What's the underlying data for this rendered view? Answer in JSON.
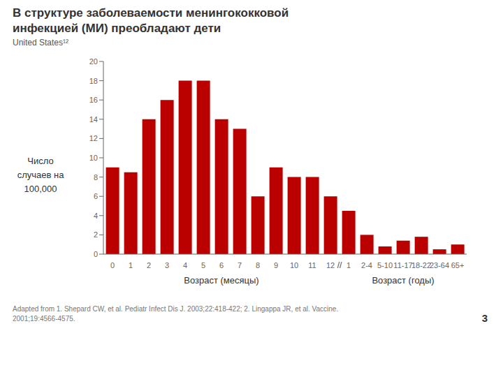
{
  "chart_data": {
    "type": "bar",
    "title": "В структуре заболеваемости менингококковой\nинфекцией (МИ) преобладают дети",
    "subtitle": "United States¹²",
    "ylabel": "Число\nслучаев на\n100,000",
    "xlabel": [
      "Возраст (месяцы)",
      "Возраст (годы)"
    ],
    "annotations": [
      "//"
    ],
    "footnote": "Adapted from 1. Shepard CW, et al. Pediatr Infect Dis J. 2003;22:418-422; 2. Lingappa JR, et al. Vaccine.\n2001;19:4566-4575.",
    "slide_number": "3",
    "categories": [
      "0",
      "1",
      "2",
      "3",
      "4",
      "5",
      "6",
      "7",
      "8",
      "9",
      "10",
      "11",
      "12",
      "1",
      "2-4",
      "5-10",
      "11-17",
      "18-22",
      "23-64",
      "65+"
    ],
    "values": [
      9.0,
      8.5,
      14.0,
      16.0,
      18.0,
      18.0,
      14.0,
      13.0,
      6.0,
      9.0,
      8.0,
      8.0,
      6.0,
      4.5,
      2.0,
      0.8,
      1.4,
      1.8,
      0.5,
      1.0
    ],
    "color": "#bb0000",
    "ylim": [
      0,
      20
    ],
    "yticks": [
      0,
      2,
      4,
      6,
      8,
      10,
      12,
      14,
      16,
      18,
      20
    ],
    "grid": false
  }
}
